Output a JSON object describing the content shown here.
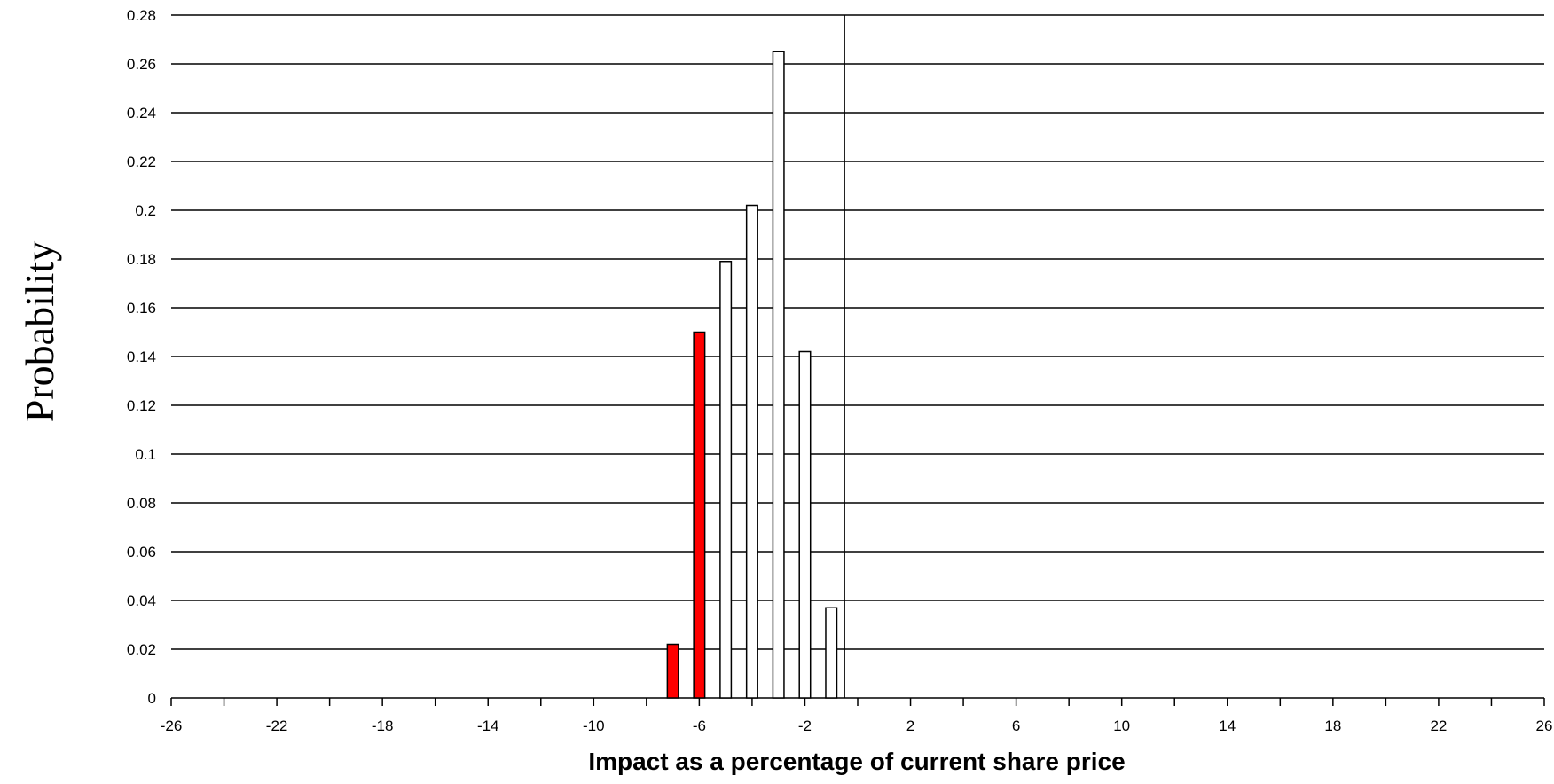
{
  "chart_data": {
    "type": "bar",
    "title": "",
    "xlabel": "Impact as a percentage of current share price",
    "ylabel": "Probability",
    "xlim": [
      -26,
      26
    ],
    "ylim": [
      0,
      0.28
    ],
    "grid": true,
    "legend": "none",
    "x_tick_labels": [
      "-26",
      "-22",
      "-18",
      "-14",
      "-10",
      "-6",
      "-2",
      "2",
      "6",
      "10",
      "14",
      "18",
      "22",
      "26"
    ],
    "y_tick_labels": [
      "0",
      "0.02",
      "0.04",
      "0.06",
      "0.08",
      "0.1",
      "0.12",
      "0.14",
      "0.16",
      "0.18",
      "0.2",
      "0.22",
      "0.24",
      "0.26",
      "0.28"
    ],
    "bars": [
      {
        "x": -7,
        "value": 0.022,
        "color": "#ff0000"
      },
      {
        "x": -6,
        "value": 0.15,
        "color": "#ff0000"
      },
      {
        "x": -5,
        "value": 0.179,
        "color": "#ffffff"
      },
      {
        "x": -4,
        "value": 0.202,
        "color": "#ffffff"
      },
      {
        "x": -3,
        "value": 0.265,
        "color": "#ffffff"
      },
      {
        "x": -2,
        "value": 0.142,
        "color": "#ffffff"
      },
      {
        "x": -1,
        "value": 0.037,
        "color": "#ffffff"
      }
    ],
    "reference_line_x": -0.5
  }
}
